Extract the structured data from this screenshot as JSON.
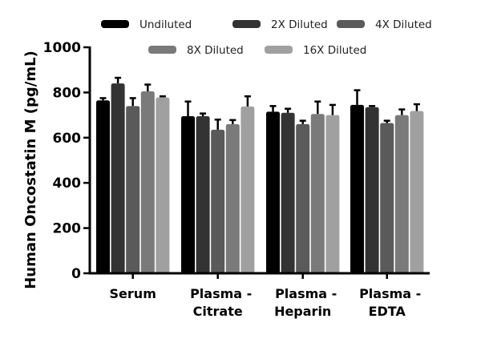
{
  "chart_data": {
    "type": "bar",
    "title": "",
    "xlabel": "",
    "ylabel": "Human Oncostatin M (pg/mL)",
    "ylim": [
      0,
      1000
    ],
    "yticks": [
      0,
      200,
      400,
      600,
      800,
      1000
    ],
    "grid": false,
    "legend_position": "top",
    "categories": [
      [
        "Serum"
      ],
      [
        "Plasma -",
        "Citrate"
      ],
      [
        "Plasma -",
        "Heparin"
      ],
      [
        "Plasma -",
        "EDTA"
      ]
    ],
    "series": [
      {
        "name": "Undiluted",
        "color": "#000000",
        "values": [
          765,
          695,
          715,
          745
        ],
        "errors": [
          10,
          65,
          25,
          65
        ]
      },
      {
        "name": "2X Diluted",
        "color": "#333333",
        "values": [
          840,
          695,
          710,
          735
        ],
        "errors": [
          25,
          12,
          18,
          5
        ]
      },
      {
        "name": "4X Diluted",
        "color": "#5a5a5a",
        "values": [
          740,
          635,
          660,
          665
        ],
        "errors": [
          35,
          45,
          15,
          10
        ]
      },
      {
        "name": "8X Diluted",
        "color": "#7a7a7a",
        "values": [
          805,
          660,
          705,
          700
        ],
        "errors": [
          30,
          18,
          55,
          25
        ]
      },
      {
        "name": "16X Diluted",
        "color": "#a0a0a0",
        "values": [
          778,
          738,
          700,
          718
        ],
        "errors": [
          5,
          45,
          45,
          30
        ]
      }
    ]
  }
}
